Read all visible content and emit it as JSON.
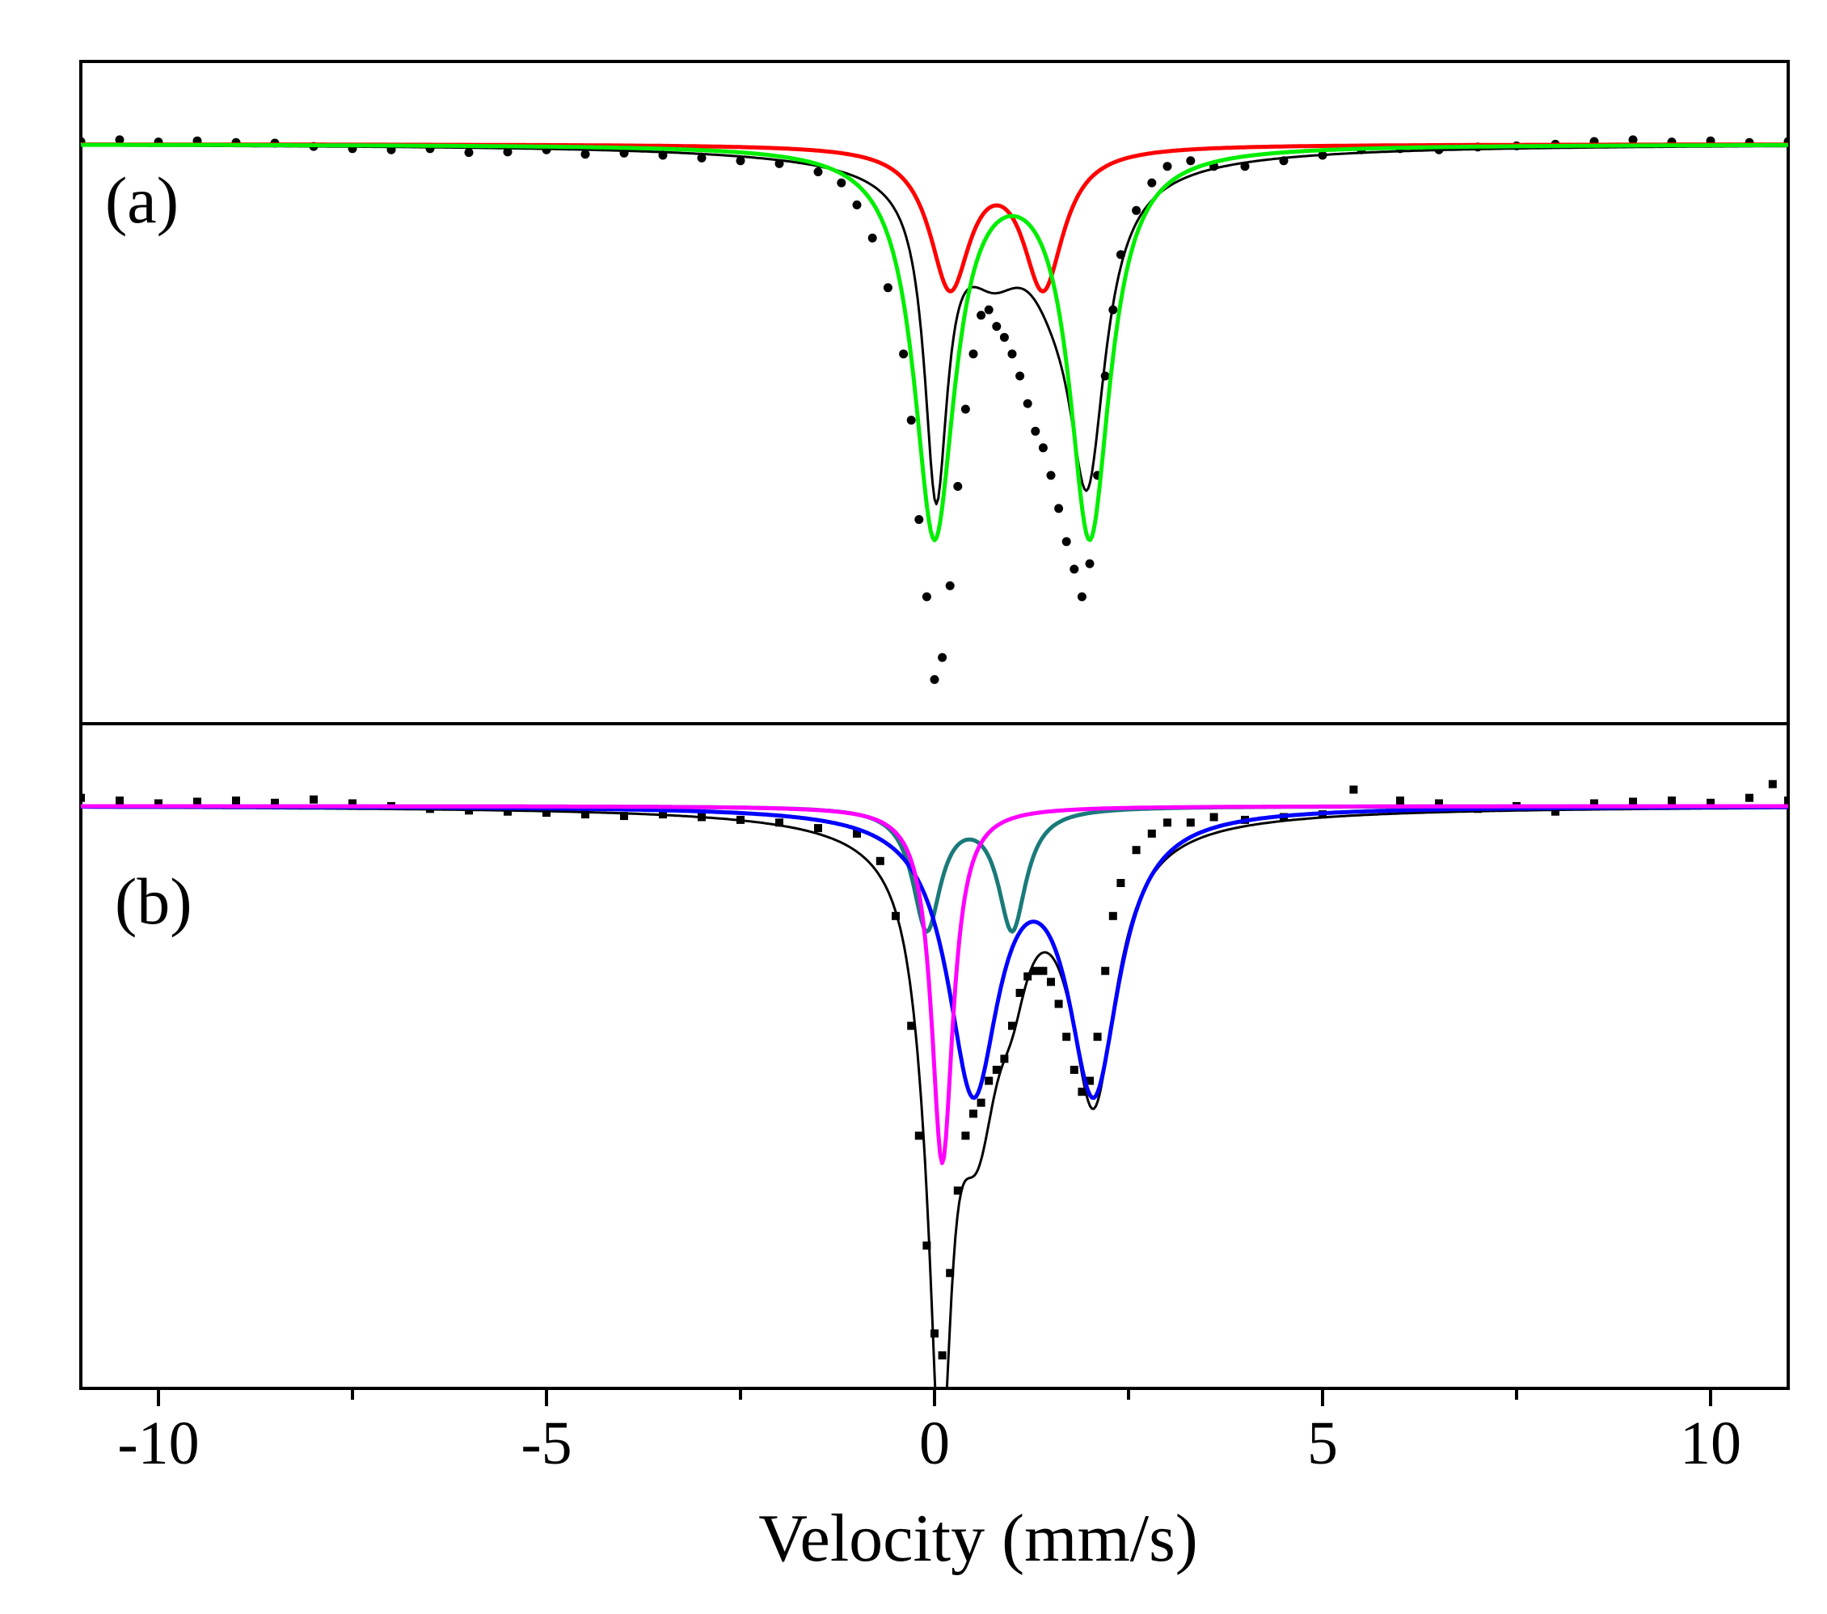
{
  "chart_data": {
    "type": "line",
    "xlabel": "Velocity (mm/s)",
    "xlim": [
      -11,
      11
    ],
    "xticks": [
      -10,
      -5,
      0,
      5,
      10
    ],
    "yticks_shown": false,
    "panels": [
      {
        "label": "(a)",
        "marker": "circle",
        "ylim": [
          -1.05,
          0.15
        ],
        "data_points": {
          "name": "experimental",
          "color": "#000000",
          "x": [
            -11.0,
            -10.5,
            -10.0,
            -9.5,
            -9.0,
            -8.5,
            -8.0,
            -7.5,
            -7.0,
            -6.5,
            -6.0,
            -5.5,
            -5.0,
            -4.5,
            -4.0,
            -3.5,
            -3.0,
            -2.5,
            -2.0,
            -1.5,
            -1.2,
            -1.0,
            -0.8,
            -0.6,
            -0.4,
            -0.3,
            -0.2,
            -0.1,
            0.0,
            0.1,
            0.2,
            0.3,
            0.4,
            0.5,
            0.6,
            0.7,
            0.8,
            0.9,
            1.0,
            1.1,
            1.2,
            1.3,
            1.4,
            1.5,
            1.6,
            1.7,
            1.8,
            1.9,
            2.0,
            2.1,
            2.2,
            2.3,
            2.4,
            2.6,
            2.8,
            3.0,
            3.3,
            3.6,
            4.0,
            4.5,
            5.0,
            5.5,
            6.0,
            6.5,
            7.0,
            7.5,
            8.0,
            8.5,
            9.0,
            9.5,
            10.0,
            10.5,
            11.0
          ],
          "y": [
            0.005,
            0.008,
            0.004,
            0.006,
            0.003,
            0.002,
            -0.004,
            -0.008,
            -0.01,
            -0.008,
            -0.015,
            -0.014,
            -0.01,
            -0.018,
            -0.016,
            -0.02,
            -0.025,
            -0.03,
            -0.035,
            -0.05,
            -0.07,
            -0.11,
            -0.17,
            -0.26,
            -0.38,
            -0.5,
            -0.68,
            -0.82,
            -0.97,
            -0.93,
            -0.8,
            -0.62,
            -0.48,
            -0.38,
            -0.31,
            -0.3,
            -0.33,
            -0.35,
            -0.38,
            -0.42,
            -0.47,
            -0.52,
            -0.55,
            -0.6,
            -0.66,
            -0.72,
            -0.77,
            -0.82,
            -0.76,
            -0.6,
            -0.42,
            -0.3,
            -0.2,
            -0.12,
            -0.07,
            -0.04,
            -0.03,
            -0.04,
            -0.04,
            -0.03,
            -0.02,
            -0.01,
            -0.008,
            -0.01,
            -0.005,
            -0.003,
            0.0,
            0.005,
            0.008,
            0.004,
            0.006,
            0.003,
            0.005
          ]
        },
        "series": [
          {
            "name": "total fit",
            "color": "#000000",
            "components": [
              {
                "center": 0.02,
                "depth": 0.55,
                "hwhm": 0.18
              },
              {
                "center": 0.75,
                "depth": 0.14,
                "hwhm": 0.5
              },
              {
                "center": 1.55,
                "depth": 0.12,
                "hwhm": 0.45
              },
              {
                "center": 1.97,
                "depth": 0.5,
                "hwhm": 0.28
              },
              {
                "center": 1.0,
                "depth": 0.045,
                "hwhm": 2.2
              }
            ]
          },
          {
            "name": "red doublet",
            "color": "#ff0000",
            "components": [
              {
                "center": 0.2,
                "depth": 0.25,
                "hwhm": 0.32
              },
              {
                "center": 1.4,
                "depth": 0.25,
                "hwhm": 0.32
              }
            ]
          },
          {
            "name": "green doublet",
            "color": "#00ee00",
            "components": [
              {
                "center": 0.0,
                "depth": 0.7,
                "hwhm": 0.32
              },
              {
                "center": 2.0,
                "depth": 0.7,
                "hwhm": 0.32
              }
            ]
          }
        ]
      },
      {
        "label": "(b)",
        "marker": "square",
        "ylim": [
          -1.06,
          0.15
        ],
        "data_points": {
          "name": "experimental",
          "color": "#000000",
          "x": [
            -11.0,
            -10.5,
            -10.0,
            -9.5,
            -9.0,
            -8.5,
            -8.0,
            -7.5,
            -7.0,
            -6.5,
            -6.0,
            -5.5,
            -5.0,
            -4.5,
            -4.0,
            -3.5,
            -3.0,
            -2.5,
            -2.0,
            -1.5,
            -1.0,
            -0.7,
            -0.5,
            -0.3,
            -0.2,
            -0.1,
            0.0,
            0.1,
            0.2,
            0.3,
            0.4,
            0.5,
            0.6,
            0.7,
            0.8,
            0.9,
            1.0,
            1.1,
            1.2,
            1.3,
            1.4,
            1.5,
            1.6,
            1.7,
            1.8,
            1.9,
            2.0,
            2.1,
            2.2,
            2.3,
            2.4,
            2.6,
            2.8,
            3.0,
            3.3,
            3.6,
            4.0,
            4.5,
            5.0,
            5.4,
            6.0,
            6.5,
            7.0,
            7.5,
            8.0,
            8.5,
            9.0,
            9.5,
            10.0,
            10.5,
            10.8,
            11.0
          ],
          "y": [
            0.015,
            0.01,
            0.005,
            0.008,
            0.01,
            0.006,
            0.012,
            0.005,
            0.0,
            -0.005,
            -0.008,
            -0.01,
            -0.012,
            -0.015,
            -0.018,
            -0.015,
            -0.02,
            -0.025,
            -0.03,
            -0.04,
            -0.05,
            -0.1,
            -0.2,
            -0.4,
            -0.6,
            -0.8,
            -0.96,
            -1.0,
            -0.85,
            -0.7,
            -0.6,
            -0.56,
            -0.54,
            -0.5,
            -0.48,
            -0.46,
            -0.4,
            -0.34,
            -0.31,
            -0.3,
            -0.3,
            -0.32,
            -0.36,
            -0.42,
            -0.48,
            -0.52,
            -0.5,
            -0.42,
            -0.3,
            -0.2,
            -0.14,
            -0.08,
            -0.05,
            -0.03,
            -0.03,
            -0.02,
            -0.025,
            -0.02,
            -0.015,
            0.03,
            0.01,
            0.005,
            -0.005,
            0.0,
            -0.01,
            0.005,
            0.008,
            0.01,
            0.006,
            0.015,
            0.04,
            0.01
          ]
        },
        "series": [
          {
            "name": "total fit",
            "color": "#000000",
            "components": [
              {
                "center": 0.08,
                "depth": 0.9,
                "hwhm": 0.17
              },
              {
                "center": 0.55,
                "depth": 0.45,
                "hwhm": 0.35
              },
              {
                "center": 2.05,
                "depth": 0.48,
                "hwhm": 0.35
              },
              {
                "center": -0.1,
                "depth": 0.13,
                "hwhm": 0.25
              },
              {
                "center": 1.0,
                "depth": 0.13,
                "hwhm": 0.25
              },
              {
                "center": 1.0,
                "depth": 0.04,
                "hwhm": 2.2
              }
            ]
          },
          {
            "name": "teal doublet",
            "color": "#1a7a7a",
            "components": [
              {
                "center": -0.1,
                "depth": 0.22,
                "hwhm": 0.22
              },
              {
                "center": 1.0,
                "depth": 0.22,
                "hwhm": 0.22
              }
            ]
          },
          {
            "name": "blue doublet",
            "color": "#0000ff",
            "components": [
              {
                "center": 0.5,
                "depth": 0.5,
                "hwhm": 0.4
              },
              {
                "center": 2.05,
                "depth": 0.5,
                "hwhm": 0.4
              }
            ]
          },
          {
            "name": "magenta singlet",
            "color": "#ff00ff",
            "components": [
              {
                "center": 0.1,
                "depth": 0.65,
                "hwhm": 0.17
              }
            ]
          }
        ]
      }
    ]
  }
}
